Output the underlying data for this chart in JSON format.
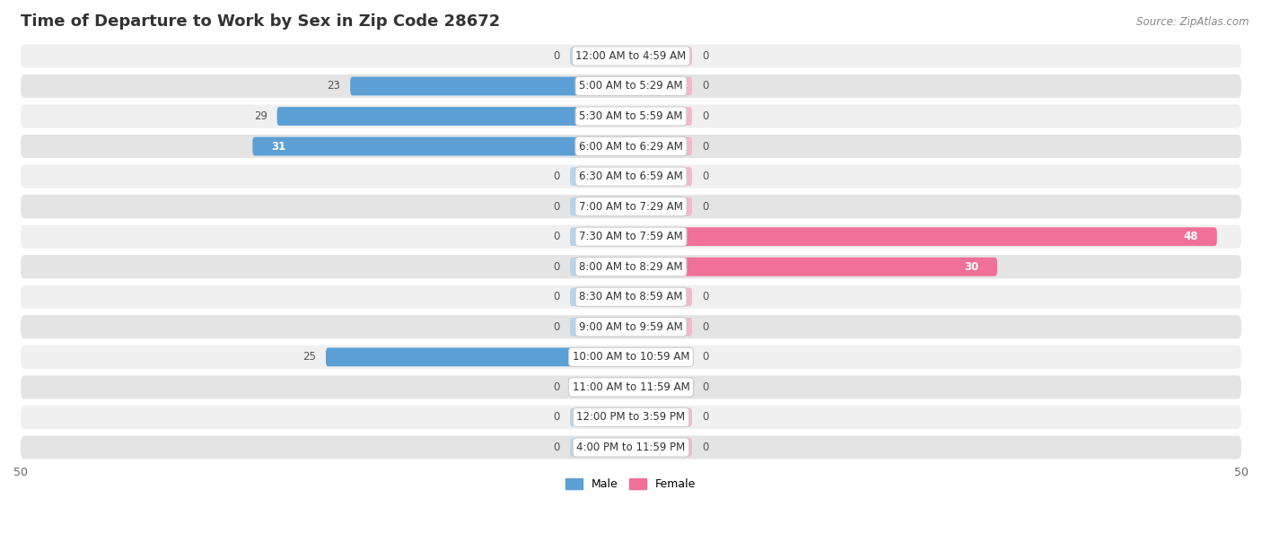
{
  "title": "Time of Departure to Work by Sex in Zip Code 28672",
  "source": "Source: ZipAtlas.com",
  "categories": [
    "12:00 AM to 4:59 AM",
    "5:00 AM to 5:29 AM",
    "5:30 AM to 5:59 AM",
    "6:00 AM to 6:29 AM",
    "6:30 AM to 6:59 AM",
    "7:00 AM to 7:29 AM",
    "7:30 AM to 7:59 AM",
    "8:00 AM to 8:29 AM",
    "8:30 AM to 8:59 AM",
    "9:00 AM to 9:59 AM",
    "10:00 AM to 10:59 AM",
    "11:00 AM to 11:59 AM",
    "12:00 PM to 3:59 PM",
    "4:00 PM to 11:59 PM"
  ],
  "male_values": [
    0,
    23,
    29,
    31,
    0,
    0,
    0,
    0,
    0,
    0,
    25,
    0,
    0,
    0
  ],
  "female_values": [
    0,
    0,
    0,
    0,
    0,
    0,
    48,
    30,
    0,
    0,
    0,
    0,
    0,
    0
  ],
  "male_color_full": "#5b9fd4",
  "male_color_stub": "#b8d4ea",
  "female_color_full": "#f07098",
  "female_color_stub": "#f5b8c8",
  "row_bg_light": "#f0f0f0",
  "row_bg_dark": "#e4e4e4",
  "title_color": "#333333",
  "source_color": "#888888",
  "value_color": "#555555",
  "value_color_inside": "#ffffff",
  "xlim": 50,
  "stub_size": 5,
  "title_fontsize": 13,
  "cat_fontsize": 8.5,
  "val_fontsize": 8.5,
  "axis_fontsize": 9,
  "legend_fontsize": 9
}
